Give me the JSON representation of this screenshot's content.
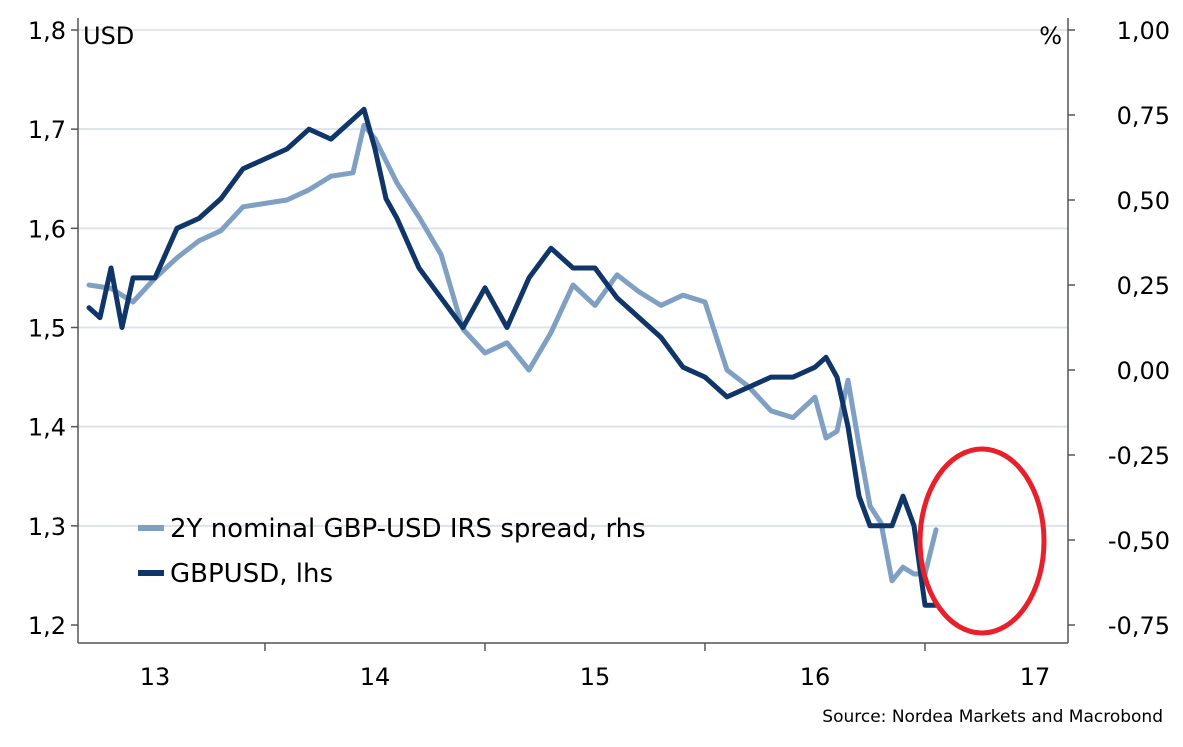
{
  "chart_data": {
    "type": "line",
    "left_axis": {
      "unit": "USD",
      "ylim": [
        1.2,
        1.8
      ],
      "ticks": [
        "1,2",
        "1,3",
        "1,4",
        "1,5",
        "1,6",
        "1,7",
        "1,8"
      ]
    },
    "right_axis": {
      "unit": "%",
      "ylim": [
        -0.75,
        1.0
      ],
      "ticks": [
        "-0,75",
        "-0,50",
        "-0,25",
        "0,00",
        "0,25",
        "0,50",
        "0,75",
        "1,00"
      ]
    },
    "x_axis": {
      "xlim": [
        2012.65,
        2017.15
      ],
      "tick_labels": [
        "13",
        "14",
        "15",
        "16",
        "17"
      ],
      "label_positions": [
        2013.0,
        2014.0,
        2015.0,
        2016.0,
        2017.0
      ]
    },
    "grid": true,
    "legend_position": "lower-left",
    "series": [
      {
        "name": "2Y nominal GBP-USD IRS spread, rhs",
        "axis": "right",
        "color": "#7f9fc3",
        "x": [
          2012.7,
          2012.8,
          2012.9,
          2013.0,
          2013.1,
          2013.2,
          2013.3,
          2013.4,
          2013.5,
          2013.6,
          2013.7,
          2013.8,
          2013.9,
          2013.95,
          2014.0,
          2014.1,
          2014.2,
          2014.3,
          2014.4,
          2014.5,
          2014.6,
          2014.7,
          2014.8,
          2014.9,
          2015.0,
          2015.1,
          2015.2,
          2015.3,
          2015.4,
          2015.5,
          2015.6,
          2015.7,
          2015.8,
          2015.9,
          2016.0,
          2016.05,
          2016.1,
          2016.15,
          2016.2,
          2016.25,
          2016.3,
          2016.35,
          2016.4,
          2016.45,
          2016.5,
          2016.55
        ],
        "values": [
          0.25,
          0.24,
          0.2,
          0.27,
          0.33,
          0.38,
          0.41,
          0.48,
          0.49,
          0.5,
          0.53,
          0.57,
          0.58,
          0.72,
          0.68,
          0.55,
          0.45,
          0.34,
          0.12,
          0.05,
          0.08,
          0.0,
          0.11,
          0.25,
          0.19,
          0.28,
          0.23,
          0.19,
          0.22,
          0.2,
          0.0,
          -0.05,
          -0.12,
          -0.14,
          -0.08,
          -0.2,
          -0.18,
          -0.03,
          -0.22,
          -0.4,
          -0.45,
          -0.62,
          -0.58,
          -0.6,
          -0.6,
          -0.47
        ]
      },
      {
        "name": "GBPUSD, lhs",
        "axis": "left",
        "color": "#0f3569",
        "x": [
          2012.7,
          2012.75,
          2012.8,
          2012.85,
          2012.9,
          2013.0,
          2013.1,
          2013.2,
          2013.3,
          2013.4,
          2013.5,
          2013.6,
          2013.7,
          2013.8,
          2013.9,
          2013.95,
          2014.0,
          2014.05,
          2014.1,
          2014.2,
          2014.3,
          2014.4,
          2014.5,
          2014.6,
          2014.7,
          2014.8,
          2014.9,
          2015.0,
          2015.1,
          2015.2,
          2015.3,
          2015.4,
          2015.5,
          2015.6,
          2015.7,
          2015.8,
          2015.9,
          2016.0,
          2016.05,
          2016.1,
          2016.15,
          2016.2,
          2016.25,
          2016.3,
          2016.35,
          2016.4,
          2016.45,
          2016.5,
          2016.55
        ],
        "values": [
          1.52,
          1.51,
          1.56,
          1.5,
          1.55,
          1.55,
          1.6,
          1.61,
          1.63,
          1.66,
          1.67,
          1.68,
          1.7,
          1.69,
          1.71,
          1.72,
          1.68,
          1.63,
          1.61,
          1.56,
          1.53,
          1.5,
          1.54,
          1.5,
          1.55,
          1.58,
          1.56,
          1.56,
          1.53,
          1.51,
          1.49,
          1.46,
          1.45,
          1.43,
          1.44,
          1.45,
          1.45,
          1.46,
          1.47,
          1.45,
          1.4,
          1.33,
          1.3,
          1.3,
          1.3,
          1.33,
          1.3,
          1.22,
          1.22
        ]
      }
    ],
    "source": "Source: Nordea Markets and Macrobond"
  }
}
